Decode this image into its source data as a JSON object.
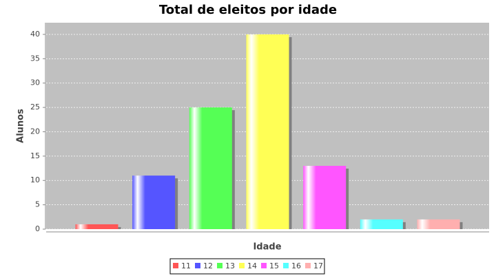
{
  "chart_data": {
    "type": "bar",
    "title": "Total de eleitos por idade",
    "x_label": "Idade",
    "y_label": "Alunos",
    "categories": [
      null
    ],
    "series": [
      {
        "name": "11",
        "color": "#ff5555",
        "values": [
          1
        ]
      },
      {
        "name": "12",
        "color": "#5555ff",
        "values": [
          11
        ]
      },
      {
        "name": "13",
        "color": "#55ff55",
        "values": [
          25
        ]
      },
      {
        "name": "14",
        "color": "#ffff55",
        "values": [
          40
        ]
      },
      {
        "name": "15",
        "color": "#ff55ff",
        "values": [
          13
        ]
      },
      {
        "name": "16",
        "color": "#55ffff",
        "values": [
          2
        ]
      },
      {
        "name": "17",
        "color": "#ffafaf",
        "values": [
          2
        ]
      }
    ],
    "ylim": [
      0,
      42.4
    ],
    "yticks": [
      0,
      5,
      10,
      15,
      20,
      25,
      30,
      35,
      40
    ],
    "grid": true,
    "legend": "bottom"
  }
}
